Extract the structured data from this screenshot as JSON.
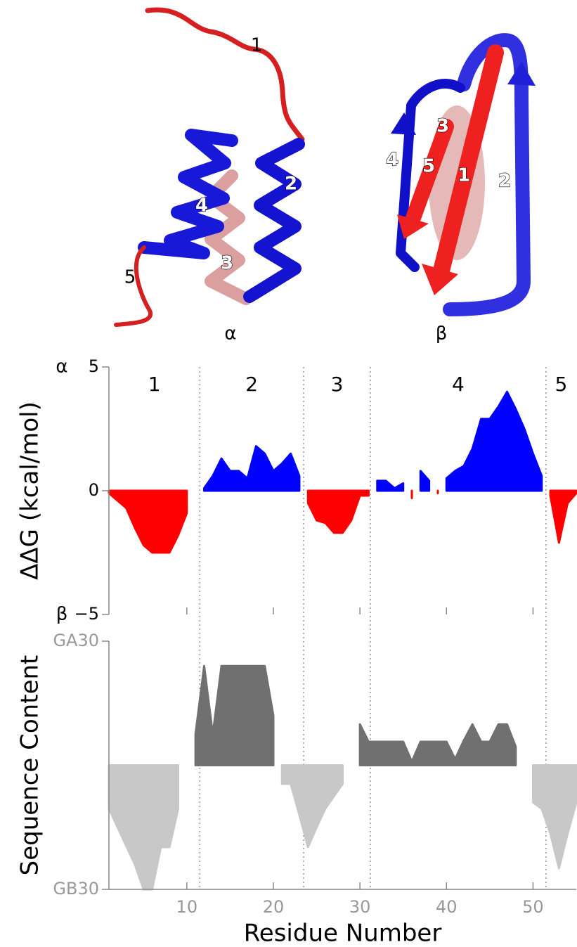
{
  "structures": [
    {
      "label": "α",
      "segment_labels": [
        "1",
        "2",
        "3",
        "4",
        "5"
      ]
    },
    {
      "label": "β",
      "segment_labels": [
        "1",
        "2",
        "3",
        "4",
        "5"
      ]
    }
  ],
  "chart_data": [
    {
      "type": "area",
      "y_label": "ΔΔG (kcal/mol)",
      "top_label": "α",
      "bottom_label": "β",
      "segment_labels": [
        "1",
        "2",
        "3",
        "4",
        "5"
      ],
      "vlines": [
        11.5,
        23.5,
        31.2,
        51.5
      ],
      "x": [
        1,
        2,
        3,
        4,
        5,
        6,
        7,
        8,
        9,
        10,
        11,
        12,
        13,
        14,
        15,
        16,
        17,
        18,
        19,
        20,
        21,
        22,
        23,
        24,
        25,
        26,
        27,
        28,
        29,
        30,
        31,
        32,
        33,
        34,
        35,
        36,
        37,
        38,
        39,
        40,
        41,
        42,
        43,
        44,
        45,
        46,
        47,
        48,
        49,
        50,
        51,
        52,
        53,
        54,
        55
      ],
      "values": [
        -0.1,
        -0.4,
        -0.7,
        -1.5,
        -2.2,
        -2.5,
        -2.5,
        -2.5,
        -1.8,
        -0.9,
        0,
        0.1,
        0.6,
        1.3,
        0.8,
        0.8,
        0.5,
        1.8,
        1.5,
        0.8,
        1.1,
        1.5,
        0.6,
        -0.5,
        -1.2,
        -1.3,
        -1.7,
        -1.7,
        -1.2,
        -0.2,
        -0.2,
        0.4,
        0.4,
        0.1,
        0.3,
        -0.3,
        0.8,
        0.4,
        -0.1,
        0.5,
        0.8,
        1.0,
        1.7,
        2.9,
        2.9,
        3.4,
        4.0,
        3.3,
        2.5,
        1.5,
        0.6,
        -0.2,
        -2.1,
        -0.5,
        -0.1
      ],
      "positive_color": "#0000ff",
      "negative_color": "#ff0000",
      "xlim": [
        1,
        55
      ],
      "ylim": [
        -5,
        5
      ],
      "yticks": [
        {
          "value": -5,
          "label": "−5"
        },
        0,
        5
      ]
    },
    {
      "type": "area",
      "x_label": "Residue Number",
      "y_label": "Sequence Content",
      "x": [
        1,
        2,
        3,
        4,
        5,
        6,
        7,
        8,
        9,
        10,
        11,
        12,
        13,
        14,
        15,
        16,
        17,
        18,
        19,
        20,
        21,
        22,
        23,
        24,
        25,
        26,
        27,
        28,
        29,
        30,
        31,
        32,
        33,
        34,
        35,
        36,
        37,
        38,
        39,
        40,
        41,
        42,
        43,
        44,
        45,
        46,
        47,
        48,
        49,
        50,
        51,
        52,
        53,
        54,
        55
      ],
      "values": [
        -0.35,
        -0.5,
        -0.65,
        -0.8,
        -1.0,
        -1.0,
        -0.66,
        -0.66,
        -0.35,
        0,
        0.25,
        0.8,
        0.25,
        0.8,
        0.8,
        0.8,
        0.8,
        0.8,
        0.8,
        0.4,
        -0.15,
        -0.15,
        -0.4,
        -0.66,
        -0.5,
        -0.35,
        -0.25,
        -0.15,
        0,
        0.33,
        0.19,
        0.19,
        0.19,
        0.19,
        0.19,
        0.03,
        0.19,
        0.19,
        0.19,
        0.19,
        0.05,
        0.2,
        0.33,
        0.19,
        0.19,
        0.33,
        0.33,
        0.15,
        0,
        -0.3,
        -0.35,
        -0.55,
        -0.83,
        -0.55,
        -0.3
      ],
      "positive_color": "#707070",
      "negative_color": "#c8c8c8",
      "xlim": [
        1,
        55
      ],
      "ylim": [
        -1,
        1
      ],
      "yticks": [
        {
          "value": -1,
          "label": "GB30"
        },
        {
          "value": 1,
          "label": "GA30"
        }
      ],
      "xticks": [
        10,
        20,
        30,
        40,
        50
      ]
    }
  ]
}
